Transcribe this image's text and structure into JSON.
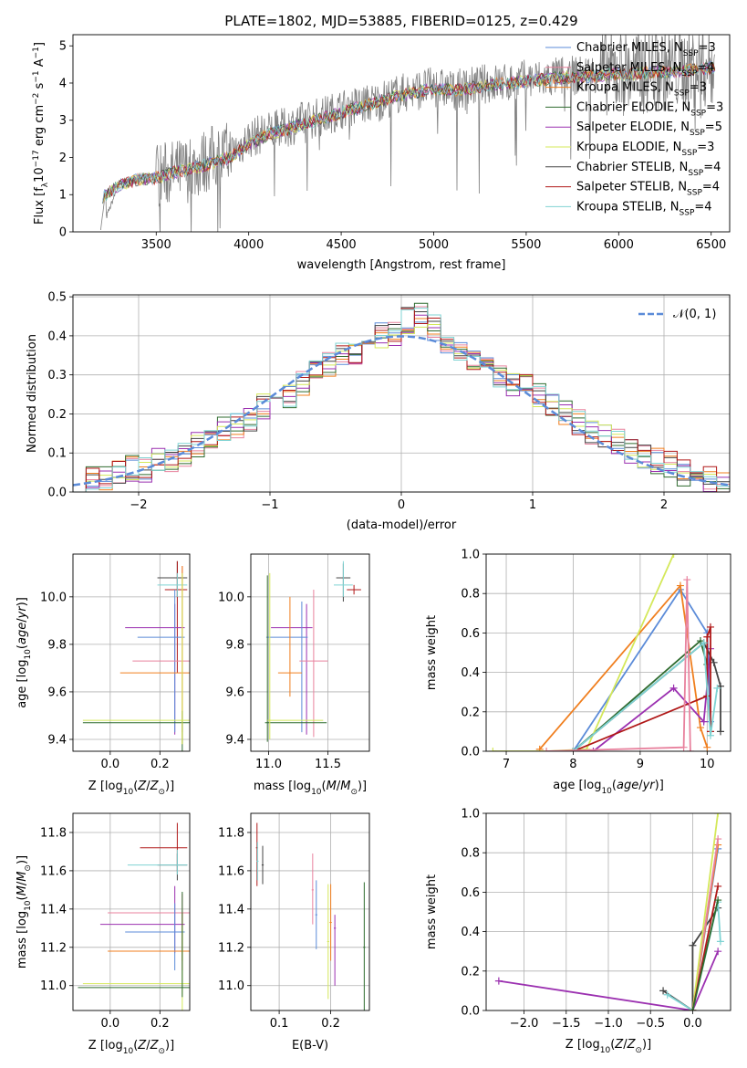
{
  "chart_data": [
    {
      "id": "spectrum",
      "type": "line",
      "title": "PLATE=1802, MJD=53885, FIBERID=0125, z=0.429",
      "xlabel": "wavelength [Angstrom, rest frame]",
      "ylabel": "Flux [f_λ 10^-17 erg cm^-2 s^-1 A^-1]",
      "xlim": [
        3050,
        6600
      ],
      "ylim": [
        0,
        5.3
      ],
      "xticks": [
        3500,
        4000,
        4500,
        5000,
        5500,
        6000,
        6500
      ],
      "yticks": [
        0,
        1,
        2,
        3,
        4,
        5
      ],
      "legend_position": "upper-right",
      "observed_color": "#808080",
      "observed_x": [
        3200,
        3300,
        3400,
        3500,
        3600,
        3700,
        3800,
        3900,
        4000,
        4100,
        4200,
        4300,
        4400,
        4500,
        4600,
        4700,
        4800,
        4900,
        5000,
        5100,
        5200,
        5300,
        5400,
        5500,
        5600,
        5700,
        5800,
        5900,
        6000,
        6100,
        6200,
        6300,
        6400,
        6500
      ],
      "observed_y": [
        0.0,
        1.3,
        1.4,
        1.5,
        1.6,
        1.7,
        2.0,
        2.1,
        2.5,
        2.7,
        2.8,
        3.0,
        3.1,
        3.3,
        3.4,
        3.5,
        3.7,
        3.8,
        3.9,
        3.8,
        3.9,
        4.0,
        4.0,
        4.1,
        4.1,
        4.2,
        4.2,
        4.3,
        4.3,
        4.3,
        4.4,
        4.4,
        4.4,
        4.5
      ],
      "series": [
        {
          "name": "Chabrier MILES, N_SSP=3",
          "color": "#5b8bd8"
        },
        {
          "name": "Salpeter MILES, N_SSP=4",
          "color": "#e8829e"
        },
        {
          "name": "Kroupa MILES, N_SSP=3",
          "color": "#f07f1f"
        },
        {
          "name": "Chabrier ELODIE, N_SSP=3",
          "color": "#2f6b2f"
        },
        {
          "name": "Salpeter ELODIE, N_SSP=5",
          "color": "#9b30b0"
        },
        {
          "name": "Kroupa ELODIE, N_SSP=3",
          "color": "#d4e85a"
        },
        {
          "name": "Chabrier STELIB, N_SSP=4",
          "color": "#444444"
        },
        {
          "name": "Salpeter STELIB, N_SSP=4",
          "color": "#b01818"
        },
        {
          "name": "Kroupa STELIB, N_SSP=4",
          "color": "#7fd3d3"
        }
      ],
      "legend_labels": [
        {
          "pre": "Chabrier MILES, N",
          "sub": "SSP",
          "post": "=3"
        },
        {
          "pre": "Salpeter MILES, N",
          "sub": "SSP",
          "post": "=4"
        },
        {
          "pre": "Kroupa MILES, N",
          "sub": "SSP",
          "post": "=3"
        },
        {
          "pre": "Chabrier ELODIE, N",
          "sub": "SSP",
          "post": "=3"
        },
        {
          "pre": "Salpeter ELODIE, N",
          "sub": "SSP",
          "post": "=5"
        },
        {
          "pre": "Kroupa ELODIE, N",
          "sub": "SSP",
          "post": "=3"
        },
        {
          "pre": "Chabrier STELIB, N",
          "sub": "SSP",
          "post": "=4"
        },
        {
          "pre": "Salpeter STELIB, N",
          "sub": "SSP",
          "post": "=4"
        },
        {
          "pre": "Kroupa STELIB, N",
          "sub": "SSP",
          "post": "=4"
        }
      ],
      "model_x": [
        3200,
        3300,
        3400,
        3500,
        3600,
        3700,
        3800,
        3900,
        4000,
        4100,
        4200,
        4300,
        4400,
        4500,
        4600,
        4700,
        4800,
        4900,
        5000,
        5100,
        5200,
        5300,
        5400,
        5500,
        5600,
        5700,
        5800,
        5900,
        6000,
        6100,
        6200,
        6300,
        6400,
        6500
      ],
      "model_y": [
        0.9,
        1.25,
        1.4,
        1.45,
        1.6,
        1.7,
        1.85,
        2.0,
        2.35,
        2.6,
        2.75,
        2.9,
        3.05,
        3.2,
        3.35,
        3.5,
        3.65,
        3.75,
        3.85,
        3.8,
        3.85,
        3.95,
        4.0,
        4.05,
        4.1,
        4.15,
        4.15,
        4.2,
        4.25,
        4.25,
        4.3,
        4.3,
        4.35,
        4.4
      ]
    },
    {
      "id": "residuals",
      "type": "line",
      "xlabel": "(data-model)/error",
      "ylabel": "Normed distribution",
      "xlim": [
        -2.5,
        2.5
      ],
      "ylim": [
        0,
        0.505
      ],
      "xticks": [
        -2,
        -1,
        0,
        1,
        2
      ],
      "yticks": [
        0.0,
        0.1,
        0.2,
        0.3,
        0.4,
        0.5
      ],
      "legend": {
        "name": "N(0,1)",
        "text": "𝒩(0, 1)",
        "color": "#5b8bd8",
        "position": "upper-right"
      },
      "bin_centers": [
        -2.45,
        -2.35,
        -2.25,
        -2.15,
        -2.05,
        -1.95,
        -1.85,
        -1.75,
        -1.65,
        -1.55,
        -1.45,
        -1.35,
        -1.25,
        -1.15,
        -1.05,
        -0.95,
        -0.85,
        -0.75,
        -0.65,
        -0.55,
        -0.45,
        -0.35,
        -0.25,
        -0.15,
        -0.05,
        0.05,
        0.15,
        0.25,
        0.35,
        0.45,
        0.55,
        0.65,
        0.75,
        0.85,
        0.95,
        1.05,
        1.15,
        1.25,
        1.35,
        1.45,
        1.55,
        1.65,
        1.75,
        1.85,
        1.95,
        2.05,
        2.15,
        2.25,
        2.35,
        2.45
      ],
      "hist_heights": [
        0.02,
        0.03,
        0.04,
        0.05,
        0.06,
        0.06,
        0.08,
        0.08,
        0.09,
        0.12,
        0.13,
        0.16,
        0.17,
        0.19,
        0.22,
        0.24,
        0.25,
        0.28,
        0.31,
        0.33,
        0.35,
        0.36,
        0.38,
        0.4,
        0.41,
        0.44,
        0.45,
        0.42,
        0.39,
        0.36,
        0.33,
        0.31,
        0.29,
        0.28,
        0.27,
        0.25,
        0.22,
        0.2,
        0.18,
        0.15,
        0.14,
        0.13,
        0.1,
        0.09,
        0.08,
        0.07,
        0.05,
        0.04,
        0.03,
        0.02
      ]
    },
    {
      "id": "age-vs-Z",
      "type": "scatter",
      "xlabel": "Z [log10(Z/Z_sun)]",
      "ylabel": "age [log10(age/yr)]",
      "xlim": [
        -0.15,
        0.32
      ],
      "ylim": [
        9.35,
        10.18
      ],
      "xticks": [
        0.0,
        0.2
      ],
      "yticks": [
        9.4,
        9.6,
        9.8,
        10.0
      ],
      "points": [
        {
          "x": 0.27,
          "y": 10.08,
          "color": "#444444"
        },
        {
          "x": 0.27,
          "y": 10.03,
          "color": "#b01818"
        },
        {
          "x": 0.27,
          "y": 10.05,
          "color": "#7fd3d3"
        },
        {
          "x": 0.26,
          "y": 9.87,
          "color": "#9b30b0"
        },
        {
          "x": 0.26,
          "y": 9.83,
          "color": "#5b8bd8"
        },
        {
          "x": 0.29,
          "y": 9.73,
          "color": "#e8829e"
        },
        {
          "x": 0.29,
          "y": 9.68,
          "color": "#f07f1f"
        },
        {
          "x": 0.29,
          "y": 9.47,
          "color": "#2f6b2f"
        },
        {
          "x": 0.29,
          "y": 9.48,
          "color": "#d4e85a"
        }
      ]
    },
    {
      "id": "age-vs-mass",
      "type": "scatter",
      "xlabel": "mass [log10(M/M_sun)]",
      "ylabel": "",
      "xlim": [
        10.85,
        11.85
      ],
      "ylim": [
        9.35,
        10.18
      ],
      "xticks": [
        11.0,
        11.5
      ],
      "yticks": [
        9.4,
        9.6,
        9.8,
        10.0
      ],
      "points": [
        {
          "x": 11.63,
          "y": 10.08,
          "color": "#444444"
        },
        {
          "x": 11.72,
          "y": 10.03,
          "color": "#b01818"
        },
        {
          "x": 11.63,
          "y": 10.05,
          "color": "#7fd3d3"
        },
        {
          "x": 11.32,
          "y": 9.87,
          "color": "#9b30b0"
        },
        {
          "x": 11.28,
          "y": 9.83,
          "color": "#5b8bd8"
        },
        {
          "x": 11.38,
          "y": 9.73,
          "color": "#e8829e"
        },
        {
          "x": 11.18,
          "y": 9.68,
          "color": "#f07f1f"
        },
        {
          "x": 10.99,
          "y": 9.47,
          "color": "#2f6b2f"
        },
        {
          "x": 11.01,
          "y": 9.48,
          "color": "#d4e85a"
        }
      ]
    },
    {
      "id": "weight-vs-age",
      "type": "line",
      "xlabel": "age [log10(age/yr)]",
      "ylabel": "mass weight",
      "xlim": [
        6.7,
        10.35
      ],
      "ylim": [
        0,
        1.0
      ],
      "xticks": [
        7,
        8,
        9,
        10
      ],
      "yticks": [
        0.0,
        0.2,
        0.4,
        0.6,
        0.8,
        1.0
      ],
      "series": [
        {
          "color": "#5b8bd8",
          "x": [
            8.0,
            9.6,
            10.0,
            10.05
          ],
          "y": [
            0.0,
            0.82,
            0.6,
            0.15
          ]
        },
        {
          "color": "#f07f1f",
          "x": [
            7.5,
            9.6,
            9.9,
            10.0
          ],
          "y": [
            0.01,
            0.84,
            0.12,
            0.02
          ]
        },
        {
          "color": "#2f6b2f",
          "x": [
            8.0,
            9.9,
            10.0
          ],
          "y": [
            0.0,
            0.56,
            0.44
          ]
        },
        {
          "color": "#9b30b0",
          "x": [
            8.3,
            9.5,
            9.95,
            10.05
          ],
          "y": [
            0.0,
            0.32,
            0.15,
            0.52
          ]
        },
        {
          "color": "#d4e85a",
          "x": [
            6.8,
            7.6,
            8.2,
            9.5
          ],
          "y": [
            0.0,
            0.0,
            0.01,
            1.0
          ]
        },
        {
          "color": "#444444",
          "x": [
            8.0,
            9.95,
            10.1,
            10.2,
            10.2
          ],
          "y": [
            0.0,
            0.55,
            0.45,
            0.33,
            0.1
          ]
        },
        {
          "color": "#b01818",
          "x": [
            8.0,
            10.0,
            10.0,
            10.05,
            10.05
          ],
          "y": [
            0.0,
            0.28,
            0.58,
            0.63,
            0.1
          ]
        },
        {
          "color": "#7fd3d3",
          "x": [
            8.0,
            9.95,
            10.05,
            10.15
          ],
          "y": [
            0.0,
            0.55,
            0.08,
            0.32
          ]
        },
        {
          "color": "#e8829e",
          "x": [
            7.6,
            9.65,
            9.7,
            9.75
          ],
          "y": [
            0.0,
            0.02,
            0.87,
            0.0
          ]
        }
      ]
    },
    {
      "id": "mass-vs-Z",
      "type": "scatter",
      "xlabel": "Z [log10(Z/Z_sun)]",
      "ylabel": "mass [log10(M/M_sun)]",
      "xlim": [
        -0.15,
        0.32
      ],
      "ylim": [
        10.87,
        11.9
      ],
      "xticks": [
        0.0,
        0.2
      ],
      "yticks": [
        11.0,
        11.2,
        11.4,
        11.6,
        11.8
      ],
      "points": [
        {
          "x": 0.27,
          "y": 11.72,
          "color": "#b01818"
        },
        {
          "x": 0.27,
          "y": 11.63,
          "color": "#444444"
        },
        {
          "x": 0.27,
          "y": 11.63,
          "color": "#7fd3d3"
        },
        {
          "x": 0.29,
          "y": 11.38,
          "color": "#e8829e"
        },
        {
          "x": 0.26,
          "y": 11.32,
          "color": "#9b30b0"
        },
        {
          "x": 0.26,
          "y": 11.28,
          "color": "#5b8bd8"
        },
        {
          "x": 0.29,
          "y": 11.18,
          "color": "#f07f1f"
        },
        {
          "x": 0.29,
          "y": 11.01,
          "color": "#d4e85a"
        },
        {
          "x": 0.29,
          "y": 10.99,
          "color": "#2f6b2f"
        }
      ]
    },
    {
      "id": "mass-vs-EBV",
      "type": "scatter",
      "xlabel": "E(B-V)",
      "ylabel": "",
      "xlim": [
        0.045,
        0.275
      ],
      "ylim": [
        10.87,
        11.9
      ],
      "xticks": [
        0.1,
        0.2
      ],
      "yticks": [
        11.0,
        11.2,
        11.4,
        11.6,
        11.8
      ],
      "points": [
        {
          "x": 0.057,
          "y": 11.72,
          "color": "#b01818"
        },
        {
          "x": 0.058,
          "y": 11.65,
          "color": "#7fd3d3"
        },
        {
          "x": 0.068,
          "y": 11.63,
          "color": "#444444"
        },
        {
          "x": 0.165,
          "y": 11.5,
          "color": "#e8829e"
        },
        {
          "x": 0.172,
          "y": 11.37,
          "color": "#5b8bd8"
        },
        {
          "x": 0.195,
          "y": 11.23,
          "color": "#d4e85a"
        },
        {
          "x": 0.2,
          "y": 11.33,
          "color": "#f07f1f"
        },
        {
          "x": 0.208,
          "y": 11.3,
          "color": "#9b30b0"
        },
        {
          "x": 0.265,
          "y": 11.2,
          "color": "#2f6b2f"
        }
      ]
    },
    {
      "id": "weight-vs-Z",
      "type": "line",
      "xlabel": "Z [log10(Z/Z_sun)]",
      "ylabel": "mass weight",
      "xlim": [
        -2.45,
        0.45
      ],
      "ylim": [
        0,
        1.0
      ],
      "xticks": [
        -2.0,
        -1.5,
        -1.0,
        -0.5,
        0.0
      ],
      "yticks": [
        0.0,
        0.2,
        0.4,
        0.6,
        0.8,
        1.0
      ],
      "series": [
        {
          "color": "#9b30b0",
          "x": [
            -2.3,
            0.0,
            0.3
          ],
          "y": [
            0.15,
            0.0,
            0.3
          ]
        },
        {
          "color": "#444444",
          "x": [
            -0.35,
            0.0,
            0.0,
            0.3
          ],
          "y": [
            0.1,
            0.0,
            0.33,
            0.52
          ]
        },
        {
          "color": "#7fd3d3",
          "x": [
            -0.3,
            0.0,
            0.3,
            0.33
          ],
          "y": [
            0.08,
            0.0,
            0.55,
            0.35
          ]
        },
        {
          "color": "#5b8bd8",
          "x": [
            0.0,
            0.3
          ],
          "y": [
            0.0,
            0.82
          ]
        },
        {
          "color": "#f07f1f",
          "x": [
            0.0,
            0.3
          ],
          "y": [
            0.0,
            0.84
          ]
        },
        {
          "color": "#e8829e",
          "x": [
            0.0,
            0.3
          ],
          "y": [
            0.0,
            0.87
          ]
        },
        {
          "color": "#d4e85a",
          "x": [
            0.0,
            0.3
          ],
          "y": [
            0.0,
            1.0
          ]
        },
        {
          "color": "#b01818",
          "x": [
            0.0,
            0.3
          ],
          "y": [
            0.0,
            0.63
          ]
        },
        {
          "color": "#2f6b2f",
          "x": [
            0.0,
            0.3
          ],
          "y": [
            0.0,
            0.56
          ]
        }
      ]
    }
  ]
}
